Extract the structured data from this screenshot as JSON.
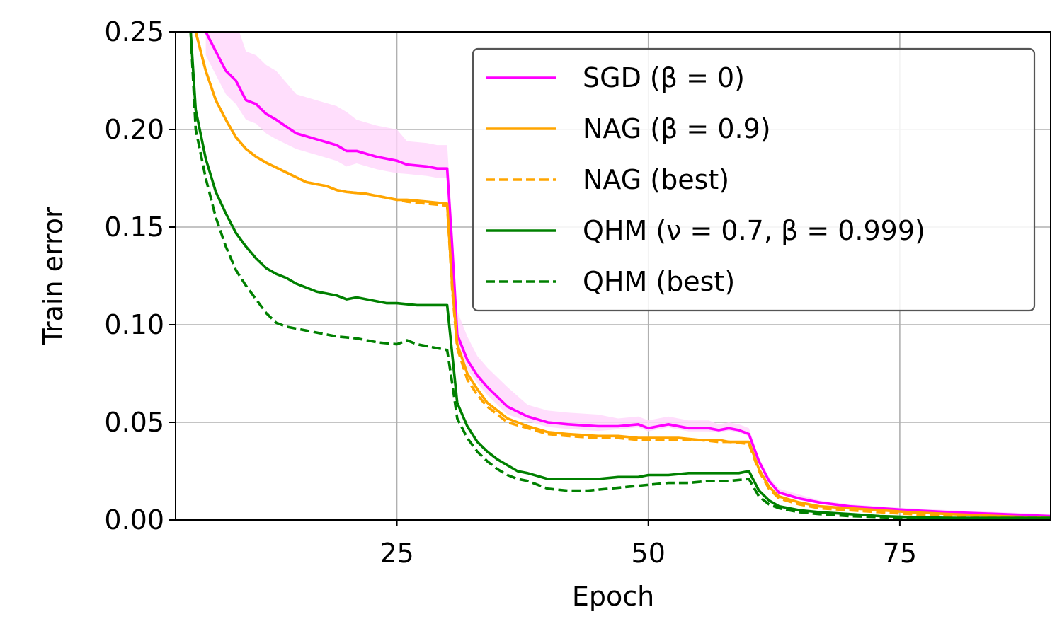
{
  "chart_data": {
    "type": "line",
    "title": "",
    "xlabel": "Epoch",
    "ylabel": "Train error",
    "xlim": [
      3,
      90
    ],
    "ylim": [
      0,
      0.25
    ],
    "xticks": [
      25,
      50,
      75
    ],
    "xtick_labels": [
      "25",
      "50",
      "75"
    ],
    "yticks": [
      0,
      0.05,
      0.1,
      0.15,
      0.2,
      0.25
    ],
    "ytick_labels": [
      "0.00",
      "0.05",
      "0.10",
      "0.15",
      "0.20",
      "0.25"
    ],
    "grid": true,
    "legend_position": "top-right",
    "series": [
      {
        "name": "SGD (β = 0)",
        "color": "#ff00ff",
        "dash": "solid",
        "band": {
          "color": "#ffd6fb",
          "halfwidth": [
            0.03,
            0.025,
            0.02,
            0.016,
            0.012,
            0.012,
            0.01,
            0.006,
            0.004,
            0.004,
            0.003,
            0.002,
            0.001,
            0.001
          ]
        },
        "x": [
          6,
          7,
          8,
          9,
          10,
          11,
          12,
          13,
          15,
          17,
          19,
          20,
          21,
          23,
          24,
          25,
          26,
          28,
          29,
          30,
          30.5,
          31,
          32,
          33,
          34,
          35,
          36,
          38,
          40,
          42,
          45,
          47,
          49,
          50,
          51,
          52,
          54,
          56,
          57,
          58,
          59,
          60,
          61,
          62,
          63,
          65,
          67,
          70,
          73,
          76,
          80,
          85,
          90
        ],
        "y": [
          0.25,
          0.24,
          0.23,
          0.225,
          0.215,
          0.213,
          0.208,
          0.205,
          0.198,
          0.195,
          0.192,
          0.189,
          0.189,
          0.186,
          0.185,
          0.184,
          0.182,
          0.181,
          0.18,
          0.18,
          0.14,
          0.095,
          0.082,
          0.074,
          0.068,
          0.063,
          0.058,
          0.053,
          0.05,
          0.049,
          0.048,
          0.048,
          0.049,
          0.047,
          0.048,
          0.049,
          0.047,
          0.047,
          0.046,
          0.047,
          0.046,
          0.044,
          0.03,
          0.02,
          0.014,
          0.011,
          0.009,
          0.007,
          0.006,
          0.005,
          0.004,
          0.003,
          0.002
        ]
      },
      {
        "name": "NAG (β = 0.9)",
        "color": "#ffa500",
        "dash": "solid",
        "x": [
          5,
          6,
          7,
          8,
          9,
          10,
          11,
          12,
          14,
          16,
          18,
          19,
          20,
          22,
          24,
          25,
          26,
          28,
          30,
          30.5,
          31,
          32,
          33,
          34,
          35,
          36,
          38,
          40,
          42,
          45,
          47,
          49,
          50,
          51,
          53,
          55,
          57,
          58,
          60,
          61,
          62,
          63,
          65,
          67,
          70,
          73,
          76,
          80,
          85,
          90
        ],
        "y": [
          0.25,
          0.23,
          0.215,
          0.205,
          0.196,
          0.19,
          0.186,
          0.183,
          0.178,
          0.173,
          0.171,
          0.169,
          0.168,
          0.167,
          0.165,
          0.164,
          0.164,
          0.163,
          0.162,
          0.12,
          0.09,
          0.075,
          0.067,
          0.06,
          0.056,
          0.052,
          0.048,
          0.045,
          0.044,
          0.043,
          0.043,
          0.042,
          0.042,
          0.042,
          0.042,
          0.041,
          0.041,
          0.04,
          0.04,
          0.026,
          0.017,
          0.012,
          0.009,
          0.007,
          0.006,
          0.005,
          0.004,
          0.003,
          0.002,
          0.001
        ]
      },
      {
        "name": "NAG (best)",
        "color": "#ffa500",
        "dash": "dashed",
        "x": [
          5,
          6,
          7,
          8,
          9,
          10,
          11,
          12,
          14,
          16,
          18,
          19,
          20,
          22,
          24,
          25,
          26,
          28,
          30,
          30.5,
          31,
          32,
          33,
          34,
          35,
          36,
          38,
          40,
          42,
          45,
          47,
          49,
          50,
          51,
          53,
          55,
          57,
          58,
          60,
          61,
          62,
          63,
          65,
          67,
          70,
          73,
          76,
          80,
          85,
          90
        ],
        "y": [
          0.25,
          0.23,
          0.215,
          0.205,
          0.196,
          0.19,
          0.186,
          0.183,
          0.178,
          0.173,
          0.171,
          0.169,
          0.168,
          0.167,
          0.165,
          0.164,
          0.163,
          0.162,
          0.161,
          0.118,
          0.088,
          0.072,
          0.064,
          0.058,
          0.054,
          0.05,
          0.047,
          0.044,
          0.043,
          0.042,
          0.042,
          0.041,
          0.041,
          0.041,
          0.041,
          0.041,
          0.04,
          0.04,
          0.039,
          0.025,
          0.016,
          0.011,
          0.008,
          0.006,
          0.005,
          0.004,
          0.003,
          0.002,
          0.0015,
          0.001
        ]
      },
      {
        "name": "QHM (ν = 0.7, β = 0.999)",
        "color": "#008000",
        "dash": "solid",
        "x": [
          4.5,
          5,
          6,
          7,
          8,
          9,
          10,
          11,
          12,
          13,
          14,
          15,
          17,
          19,
          20,
          21,
          22,
          24,
          25,
          27,
          29,
          30,
          30.5,
          31,
          32,
          33,
          34,
          35,
          36,
          37,
          38,
          40,
          42,
          44,
          45,
          47,
          49,
          50,
          52,
          54,
          56,
          58,
          59,
          60,
          61,
          62,
          63,
          65,
          67,
          70,
          73,
          76,
          80,
          85,
          90
        ],
        "y": [
          0.25,
          0.21,
          0.185,
          0.168,
          0.157,
          0.147,
          0.14,
          0.134,
          0.129,
          0.126,
          0.124,
          0.121,
          0.117,
          0.115,
          0.113,
          0.114,
          0.113,
          0.111,
          0.111,
          0.11,
          0.11,
          0.11,
          0.085,
          0.06,
          0.048,
          0.04,
          0.035,
          0.031,
          0.028,
          0.025,
          0.024,
          0.021,
          0.021,
          0.021,
          0.021,
          0.022,
          0.022,
          0.023,
          0.023,
          0.024,
          0.024,
          0.024,
          0.024,
          0.025,
          0.015,
          0.01,
          0.007,
          0.005,
          0.004,
          0.003,
          0.002,
          0.0015,
          0.001,
          0.001,
          0.001
        ]
      },
      {
        "name": "QHM (best)",
        "color": "#008000",
        "dash": "dashed",
        "x": [
          4.5,
          5,
          6,
          7,
          8,
          9,
          10,
          11,
          12,
          13,
          14,
          15,
          16,
          17,
          19,
          21,
          23,
          25,
          26,
          27,
          29,
          30,
          30.5,
          31,
          32,
          33,
          34,
          35,
          36,
          37,
          38,
          40,
          42,
          44,
          46,
          48,
          50,
          52,
          54,
          56,
          58,
          60,
          61,
          62,
          63,
          65,
          67,
          70,
          73,
          76,
          80,
          85,
          90
        ],
        "y": [
          0.25,
          0.2,
          0.175,
          0.155,
          0.14,
          0.128,
          0.12,
          0.113,
          0.106,
          0.101,
          0.099,
          0.098,
          0.097,
          0.096,
          0.094,
          0.093,
          0.091,
          0.09,
          0.092,
          0.09,
          0.088,
          0.087,
          0.07,
          0.052,
          0.042,
          0.035,
          0.03,
          0.026,
          0.023,
          0.021,
          0.02,
          0.016,
          0.015,
          0.015,
          0.016,
          0.017,
          0.018,
          0.019,
          0.019,
          0.02,
          0.02,
          0.021,
          0.012,
          0.008,
          0.006,
          0.004,
          0.003,
          0.002,
          0.0015,
          0.001,
          0.001,
          0.001,
          0.001
        ]
      }
    ]
  }
}
